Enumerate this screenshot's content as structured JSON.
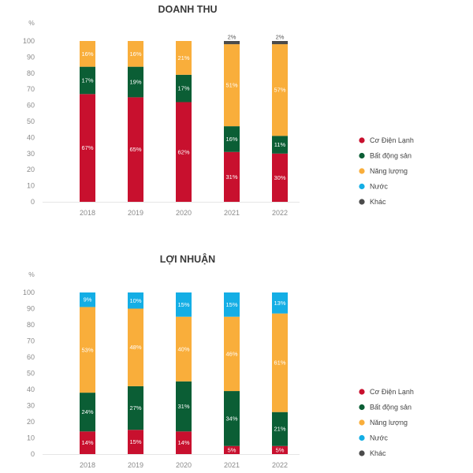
{
  "colors": {
    "co_dien_lanh": "#c8102e",
    "bat_dong_san": "#0b5e35",
    "nang_luong": "#f9ae3b",
    "nuoc": "#14aee5",
    "khac": "#4b4b4b",
    "axis_text": "#8a8a8a",
    "title_text": "#3a3a3a",
    "gridline": "#e6e6e6"
  },
  "legend": {
    "items": [
      "Cơ Điện Lạnh",
      "Bất động sản",
      "Năng lượng",
      "Nước",
      "Khác"
    ]
  },
  "chart_data": [
    {
      "type": "bar",
      "stacked": true,
      "title": "DOANH THU",
      "ylabel": "%",
      "ylim": [
        0,
        100
      ],
      "yticks": [
        0,
        10,
        20,
        30,
        40,
        50,
        60,
        70,
        80,
        90,
        100
      ],
      "grid": false,
      "legend_position": "right",
      "categories": [
        "2018",
        "2019",
        "2020",
        "2021",
        "2022"
      ],
      "series": [
        {
          "name": "Cơ Điện Lạnh",
          "color_key": "co_dien_lanh",
          "values": [
            67,
            65,
            62,
            31,
            30
          ],
          "labels": [
            "67%",
            "65%",
            "62%",
            "31%",
            "30%"
          ]
        },
        {
          "name": "Bất động sản",
          "color_key": "bat_dong_san",
          "values": [
            17,
            19,
            17,
            16,
            11
          ],
          "labels": [
            "17%",
            "19%",
            "17%",
            "16%",
            "11%"
          ]
        },
        {
          "name": "Năng lượng",
          "color_key": "nang_luong",
          "values": [
            16,
            16,
            21,
            51,
            57
          ],
          "labels": [
            "16%",
            "16%",
            "21%",
            "51%",
            "57%"
          ]
        },
        {
          "name": "Nước",
          "color_key": "nuoc",
          "values": [
            0,
            0,
            0,
            0,
            0
          ],
          "labels": [
            "",
            "",
            "",
            "",
            ""
          ]
        },
        {
          "name": "Khác",
          "color_key": "khac",
          "values": [
            0,
            0,
            0,
            2,
            2
          ],
          "labels": [
            "",
            "",
            "",
            "2%",
            "2%"
          ],
          "label_above": true
        }
      ]
    },
    {
      "type": "bar",
      "stacked": true,
      "title": "LỢI NHUẬN",
      "ylabel": "%",
      "ylim": [
        0,
        100
      ],
      "yticks": [
        0,
        10,
        20,
        30,
        40,
        50,
        60,
        70,
        80,
        90,
        100
      ],
      "grid": false,
      "legend_position": "right",
      "categories": [
        "2018",
        "2019",
        "2020",
        "2021",
        "2022"
      ],
      "series": [
        {
          "name": "Cơ Điện Lạnh",
          "color_key": "co_dien_lanh",
          "values": [
            14,
            15,
            14,
            5,
            5
          ],
          "labels": [
            "14%",
            "15%",
            "14%",
            "5%",
            "5%"
          ]
        },
        {
          "name": "Bất động sản",
          "color_key": "bat_dong_san",
          "values": [
            24,
            27,
            31,
            34,
            21
          ],
          "labels": [
            "24%",
            "27%",
            "31%",
            "34%",
            "21%"
          ]
        },
        {
          "name": "Năng lượng",
          "color_key": "nang_luong",
          "values": [
            53,
            48,
            40,
            46,
            61
          ],
          "labels": [
            "53%",
            "48%",
            "40%",
            "46%",
            "61%"
          ]
        },
        {
          "name": "Nước",
          "color_key": "nuoc",
          "values": [
            9,
            10,
            15,
            15,
            13
          ],
          "labels": [
            "9%",
            "10%",
            "15%",
            "15%",
            "13%"
          ]
        },
        {
          "name": "Khác",
          "color_key": "khac",
          "values": [
            0,
            0,
            0,
            0,
            0
          ],
          "labels": [
            "",
            "",
            "",
            "",
            ""
          ]
        }
      ]
    }
  ]
}
